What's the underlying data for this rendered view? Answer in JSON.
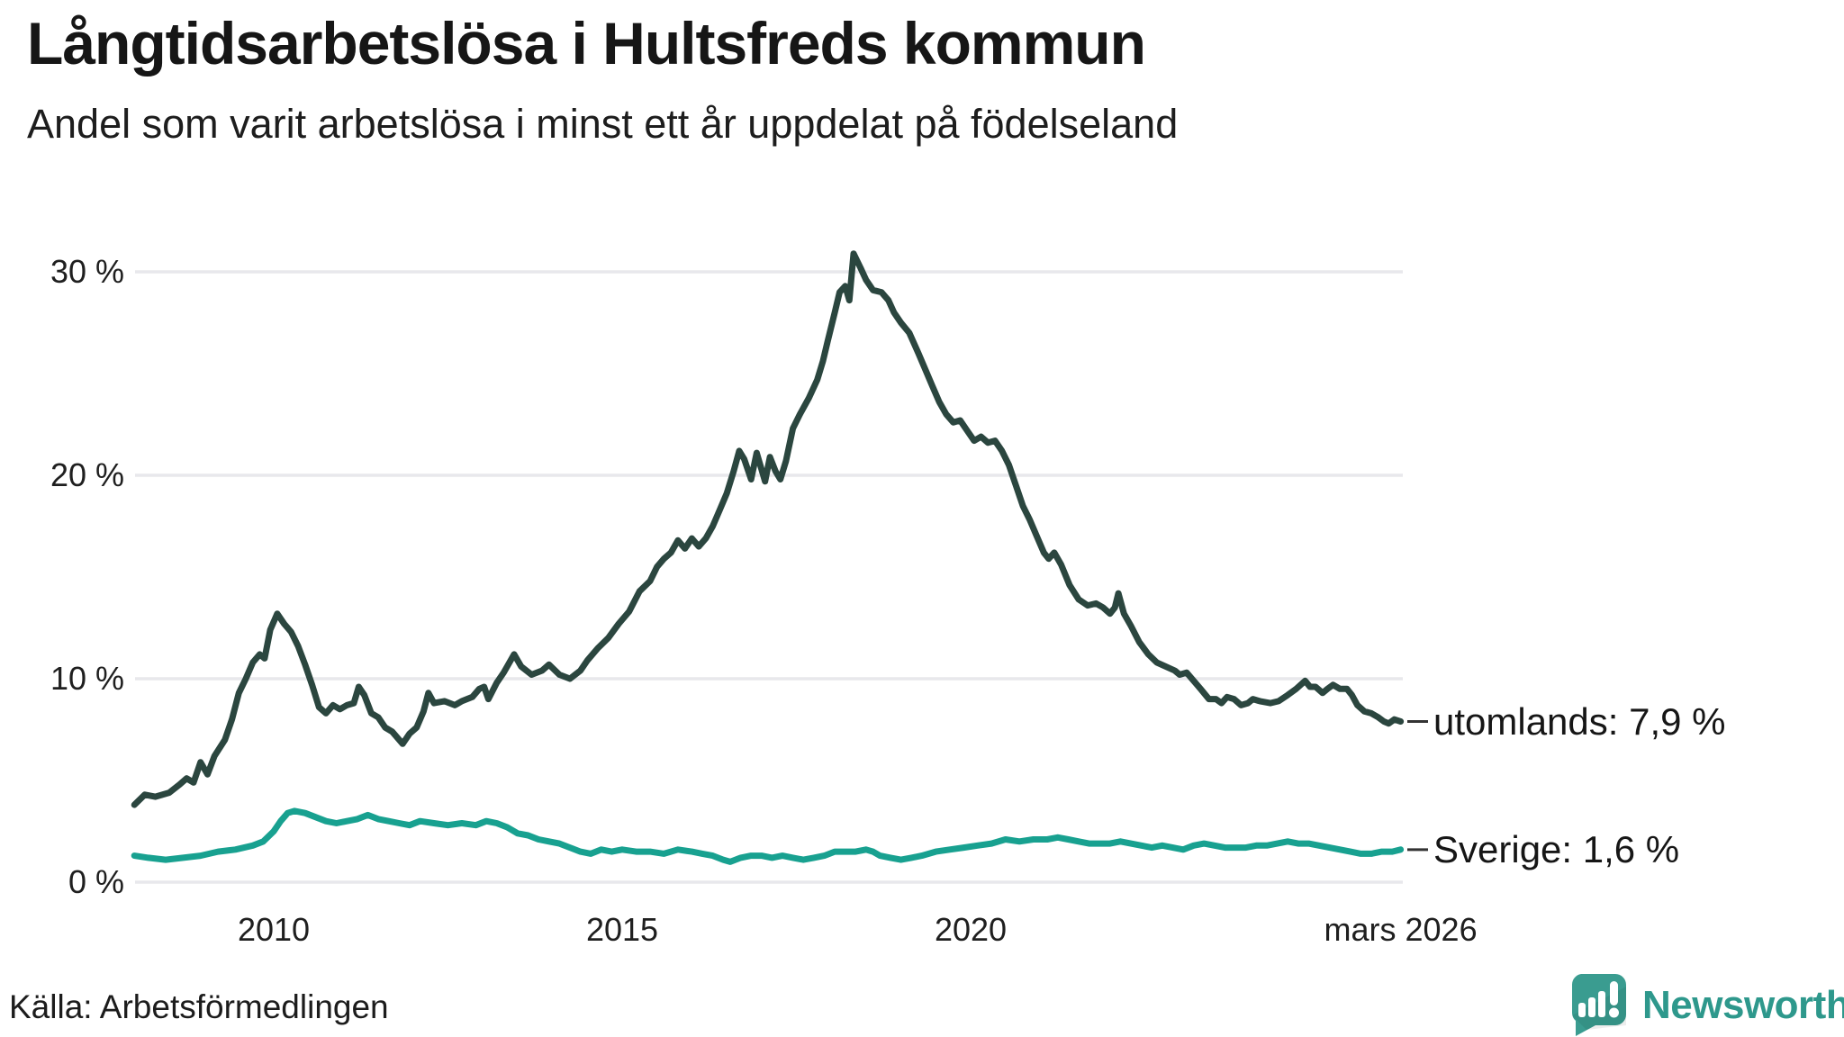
{
  "title": "Långtidsarbetslösa i Hultsfreds kommun",
  "subtitle": "Andel som varit arbetslösa i minst ett år uppdelat på födelseland",
  "source": "Källa: Arbetsförmedlingen",
  "branding": {
    "name": "Newsworthy",
    "icon": "speech-bubble-bar-chart",
    "color": "#2e988c",
    "icon_color": "#3a9c90"
  },
  "colors": {
    "utomlands_line": "#2b463f",
    "sverige_line": "#18a190",
    "gridline": "#e8e8ec",
    "text": "#1a1a1a",
    "connector": "#333333"
  },
  "chart_data": {
    "type": "line",
    "title": "Långtidsarbetslösa i Hultsfreds kommun",
    "subtitle": "Andel som varit arbetslösa i minst ett år uppdelat på födelseland",
    "xlabel": "",
    "ylabel": "",
    "x_range": [
      2008.0,
      2026.2
    ],
    "ylim": [
      0,
      31
    ],
    "grid": "horizontal",
    "legend_position": "right-end-labels",
    "yticks": [
      {
        "label": "0 %",
        "value": 0
      },
      {
        "label": "10 %",
        "value": 10
      },
      {
        "label": "20 %",
        "value": 20
      },
      {
        "label": "30 %",
        "value": 30
      }
    ],
    "xticks": [
      {
        "label": "2010",
        "year": 2010
      },
      {
        "label": "2015",
        "year": 2015
      },
      {
        "label": "2020",
        "year": 2020
      },
      {
        "label": "mars 2026",
        "year": 2026.17
      }
    ],
    "series": [
      {
        "name": "utomlands",
        "end_label": "utomlands: 7,9 %",
        "latest_value": "7,9 %",
        "color": "#2b463f",
        "points": [
          [
            2008.0,
            3.8
          ],
          [
            2008.15,
            4.3
          ],
          [
            2008.3,
            4.2
          ],
          [
            2008.5,
            4.4
          ],
          [
            2008.65,
            4.8
          ],
          [
            2008.75,
            5.1
          ],
          [
            2008.85,
            4.9
          ],
          [
            2008.95,
            5.9
          ],
          [
            2009.05,
            5.3
          ],
          [
            2009.15,
            6.2
          ],
          [
            2009.3,
            7.0
          ],
          [
            2009.4,
            8.0
          ],
          [
            2009.5,
            9.3
          ],
          [
            2009.6,
            10.0
          ],
          [
            2009.7,
            10.8
          ],
          [
            2009.8,
            11.2
          ],
          [
            2009.87,
            11.0
          ],
          [
            2009.95,
            12.4
          ],
          [
            2010.05,
            13.2
          ],
          [
            2010.15,
            12.7
          ],
          [
            2010.25,
            12.3
          ],
          [
            2010.35,
            11.6
          ],
          [
            2010.45,
            10.7
          ],
          [
            2010.55,
            9.7
          ],
          [
            2010.65,
            8.6
          ],
          [
            2010.75,
            8.3
          ],
          [
            2010.85,
            8.7
          ],
          [
            2010.95,
            8.5
          ],
          [
            2011.05,
            8.7
          ],
          [
            2011.15,
            8.8
          ],
          [
            2011.22,
            9.6
          ],
          [
            2011.3,
            9.2
          ],
          [
            2011.4,
            8.3
          ],
          [
            2011.5,
            8.1
          ],
          [
            2011.6,
            7.6
          ],
          [
            2011.7,
            7.4
          ],
          [
            2011.85,
            6.8
          ],
          [
            2011.95,
            7.3
          ],
          [
            2012.05,
            7.6
          ],
          [
            2012.15,
            8.4
          ],
          [
            2012.22,
            9.3
          ],
          [
            2012.3,
            8.8
          ],
          [
            2012.45,
            8.9
          ],
          [
            2012.6,
            8.7
          ],
          [
            2012.7,
            8.9
          ],
          [
            2012.85,
            9.1
          ],
          [
            2012.95,
            9.5
          ],
          [
            2013.02,
            9.6
          ],
          [
            2013.08,
            9.0
          ],
          [
            2013.2,
            9.8
          ],
          [
            2013.3,
            10.3
          ],
          [
            2013.45,
            11.2
          ],
          [
            2013.55,
            10.6
          ],
          [
            2013.7,
            10.2
          ],
          [
            2013.85,
            10.4
          ],
          [
            2013.95,
            10.7
          ],
          [
            2014.1,
            10.2
          ],
          [
            2014.25,
            10.0
          ],
          [
            2014.4,
            10.4
          ],
          [
            2014.5,
            10.9
          ],
          [
            2014.65,
            11.5
          ],
          [
            2014.8,
            12.0
          ],
          [
            2014.95,
            12.7
          ],
          [
            2015.1,
            13.3
          ],
          [
            2015.25,
            14.3
          ],
          [
            2015.4,
            14.8
          ],
          [
            2015.5,
            15.5
          ],
          [
            2015.6,
            15.9
          ],
          [
            2015.7,
            16.2
          ],
          [
            2015.8,
            16.8
          ],
          [
            2015.9,
            16.4
          ],
          [
            2016.0,
            16.9
          ],
          [
            2016.1,
            16.5
          ],
          [
            2016.2,
            16.9
          ],
          [
            2016.3,
            17.5
          ],
          [
            2016.4,
            18.3
          ],
          [
            2016.5,
            19.1
          ],
          [
            2016.6,
            20.2
          ],
          [
            2016.68,
            21.2
          ],
          [
            2016.75,
            20.8
          ],
          [
            2016.85,
            19.8
          ],
          [
            2016.93,
            21.1
          ],
          [
            2017.05,
            19.7
          ],
          [
            2017.12,
            20.9
          ],
          [
            2017.2,
            20.2
          ],
          [
            2017.27,
            19.8
          ],
          [
            2017.35,
            20.7
          ],
          [
            2017.45,
            22.3
          ],
          [
            2017.55,
            23.0
          ],
          [
            2017.68,
            23.8
          ],
          [
            2017.8,
            24.7
          ],
          [
            2017.88,
            25.6
          ],
          [
            2017.95,
            26.6
          ],
          [
            2018.05,
            28.0
          ],
          [
            2018.12,
            29.0
          ],
          [
            2018.2,
            29.3
          ],
          [
            2018.26,
            28.6
          ],
          [
            2018.32,
            30.9
          ],
          [
            2018.42,
            30.2
          ],
          [
            2018.5,
            29.6
          ],
          [
            2018.6,
            29.1
          ],
          [
            2018.72,
            29.0
          ],
          [
            2018.82,
            28.6
          ],
          [
            2018.9,
            28.0
          ],
          [
            2019.0,
            27.5
          ],
          [
            2019.12,
            27.0
          ],
          [
            2019.25,
            26.0
          ],
          [
            2019.35,
            25.2
          ],
          [
            2019.45,
            24.4
          ],
          [
            2019.55,
            23.6
          ],
          [
            2019.65,
            23.0
          ],
          [
            2019.75,
            22.6
          ],
          [
            2019.85,
            22.7
          ],
          [
            2019.95,
            22.2
          ],
          [
            2020.05,
            21.7
          ],
          [
            2020.15,
            21.9
          ],
          [
            2020.25,
            21.6
          ],
          [
            2020.35,
            21.7
          ],
          [
            2020.45,
            21.2
          ],
          [
            2020.55,
            20.5
          ],
          [
            2020.65,
            19.5
          ],
          [
            2020.75,
            18.5
          ],
          [
            2020.85,
            17.8
          ],
          [
            2020.95,
            17.0
          ],
          [
            2021.05,
            16.2
          ],
          [
            2021.12,
            15.9
          ],
          [
            2021.2,
            16.2
          ],
          [
            2021.3,
            15.6
          ],
          [
            2021.42,
            14.6
          ],
          [
            2021.55,
            13.9
          ],
          [
            2021.68,
            13.6
          ],
          [
            2021.8,
            13.7
          ],
          [
            2021.9,
            13.5
          ],
          [
            2022.0,
            13.2
          ],
          [
            2022.07,
            13.5
          ],
          [
            2022.12,
            14.2
          ],
          [
            2022.2,
            13.2
          ],
          [
            2022.3,
            12.6
          ],
          [
            2022.42,
            11.8
          ],
          [
            2022.55,
            11.2
          ],
          [
            2022.67,
            10.8
          ],
          [
            2022.8,
            10.6
          ],
          [
            2022.93,
            10.4
          ],
          [
            2023.0,
            10.2
          ],
          [
            2023.1,
            10.3
          ],
          [
            2023.2,
            9.9
          ],
          [
            2023.3,
            9.5
          ],
          [
            2023.42,
            9.0
          ],
          [
            2023.52,
            9.0
          ],
          [
            2023.6,
            8.8
          ],
          [
            2023.68,
            9.1
          ],
          [
            2023.78,
            9.0
          ],
          [
            2023.88,
            8.7
          ],
          [
            2023.98,
            8.8
          ],
          [
            2024.05,
            9.0
          ],
          [
            2024.15,
            8.9
          ],
          [
            2024.3,
            8.8
          ],
          [
            2024.42,
            8.9
          ],
          [
            2024.55,
            9.2
          ],
          [
            2024.67,
            9.5
          ],
          [
            2024.8,
            9.9
          ],
          [
            2024.87,
            9.6
          ],
          [
            2024.95,
            9.6
          ],
          [
            2025.05,
            9.3
          ],
          [
            2025.12,
            9.5
          ],
          [
            2025.2,
            9.7
          ],
          [
            2025.3,
            9.5
          ],
          [
            2025.4,
            9.5
          ],
          [
            2025.47,
            9.2
          ],
          [
            2025.55,
            8.7
          ],
          [
            2025.65,
            8.4
          ],
          [
            2025.75,
            8.3
          ],
          [
            2025.85,
            8.1
          ],
          [
            2025.93,
            7.9
          ],
          [
            2026.0,
            7.8
          ],
          [
            2026.08,
            8.0
          ],
          [
            2026.17,
            7.9
          ]
        ]
      },
      {
        "name": "Sverige",
        "end_label": "Sverige: 1,6 %",
        "latest_value": "1,6 %",
        "color": "#18a190",
        "points": [
          [
            2008.0,
            1.3
          ],
          [
            2008.2,
            1.2
          ],
          [
            2008.45,
            1.1
          ],
          [
            2008.7,
            1.2
          ],
          [
            2008.95,
            1.3
          ],
          [
            2009.2,
            1.5
          ],
          [
            2009.45,
            1.6
          ],
          [
            2009.7,
            1.8
          ],
          [
            2009.85,
            2.0
          ],
          [
            2010.0,
            2.5
          ],
          [
            2010.1,
            3.0
          ],
          [
            2010.2,
            3.4
          ],
          [
            2010.3,
            3.5
          ],
          [
            2010.45,
            3.4
          ],
          [
            2010.6,
            3.2
          ],
          [
            2010.75,
            3.0
          ],
          [
            2010.9,
            2.9
          ],
          [
            2011.05,
            3.0
          ],
          [
            2011.2,
            3.1
          ],
          [
            2011.35,
            3.3
          ],
          [
            2011.5,
            3.1
          ],
          [
            2011.65,
            3.0
          ],
          [
            2011.8,
            2.9
          ],
          [
            2011.95,
            2.8
          ],
          [
            2012.1,
            3.0
          ],
          [
            2012.3,
            2.9
          ],
          [
            2012.5,
            2.8
          ],
          [
            2012.7,
            2.9
          ],
          [
            2012.9,
            2.8
          ],
          [
            2013.05,
            3.0
          ],
          [
            2013.2,
            2.9
          ],
          [
            2013.35,
            2.7
          ],
          [
            2013.5,
            2.4
          ],
          [
            2013.65,
            2.3
          ],
          [
            2013.8,
            2.1
          ],
          [
            2013.95,
            2.0
          ],
          [
            2014.1,
            1.9
          ],
          [
            2014.25,
            1.7
          ],
          [
            2014.4,
            1.5
          ],
          [
            2014.55,
            1.4
          ],
          [
            2014.7,
            1.6
          ],
          [
            2014.85,
            1.5
          ],
          [
            2015.0,
            1.6
          ],
          [
            2015.2,
            1.5
          ],
          [
            2015.4,
            1.5
          ],
          [
            2015.6,
            1.4
          ],
          [
            2015.8,
            1.6
          ],
          [
            2016.0,
            1.5
          ],
          [
            2016.15,
            1.4
          ],
          [
            2016.3,
            1.3
          ],
          [
            2016.45,
            1.1
          ],
          [
            2016.55,
            1.0
          ],
          [
            2016.7,
            1.2
          ],
          [
            2016.85,
            1.3
          ],
          [
            2017.0,
            1.3
          ],
          [
            2017.15,
            1.2
          ],
          [
            2017.3,
            1.3
          ],
          [
            2017.45,
            1.2
          ],
          [
            2017.6,
            1.1
          ],
          [
            2017.75,
            1.2
          ],
          [
            2017.9,
            1.3
          ],
          [
            2018.05,
            1.5
          ],
          [
            2018.2,
            1.5
          ],
          [
            2018.35,
            1.5
          ],
          [
            2018.5,
            1.6
          ],
          [
            2018.6,
            1.5
          ],
          [
            2018.7,
            1.3
          ],
          [
            2018.85,
            1.2
          ],
          [
            2019.0,
            1.1
          ],
          [
            2019.15,
            1.2
          ],
          [
            2019.3,
            1.3
          ],
          [
            2019.5,
            1.5
          ],
          [
            2019.7,
            1.6
          ],
          [
            2019.9,
            1.7
          ],
          [
            2020.1,
            1.8
          ],
          [
            2020.3,
            1.9
          ],
          [
            2020.5,
            2.1
          ],
          [
            2020.7,
            2.0
          ],
          [
            2020.9,
            2.1
          ],
          [
            2021.1,
            2.1
          ],
          [
            2021.25,
            2.2
          ],
          [
            2021.4,
            2.1
          ],
          [
            2021.55,
            2.0
          ],
          [
            2021.7,
            1.9
          ],
          [
            2021.85,
            1.9
          ],
          [
            2022.0,
            1.9
          ],
          [
            2022.15,
            2.0
          ],
          [
            2022.3,
            1.9
          ],
          [
            2022.45,
            1.8
          ],
          [
            2022.6,
            1.7
          ],
          [
            2022.75,
            1.8
          ],
          [
            2022.9,
            1.7
          ],
          [
            2023.05,
            1.6
          ],
          [
            2023.2,
            1.8
          ],
          [
            2023.35,
            1.9
          ],
          [
            2023.5,
            1.8
          ],
          [
            2023.65,
            1.7
          ],
          [
            2023.8,
            1.7
          ],
          [
            2023.95,
            1.7
          ],
          [
            2024.1,
            1.8
          ],
          [
            2024.25,
            1.8
          ],
          [
            2024.4,
            1.9
          ],
          [
            2024.55,
            2.0
          ],
          [
            2024.7,
            1.9
          ],
          [
            2024.85,
            1.9
          ],
          [
            2025.0,
            1.8
          ],
          [
            2025.15,
            1.7
          ],
          [
            2025.3,
            1.6
          ],
          [
            2025.45,
            1.5
          ],
          [
            2025.6,
            1.4
          ],
          [
            2025.75,
            1.4
          ],
          [
            2025.9,
            1.5
          ],
          [
            2026.05,
            1.5
          ],
          [
            2026.17,
            1.6
          ]
        ]
      }
    ]
  }
}
